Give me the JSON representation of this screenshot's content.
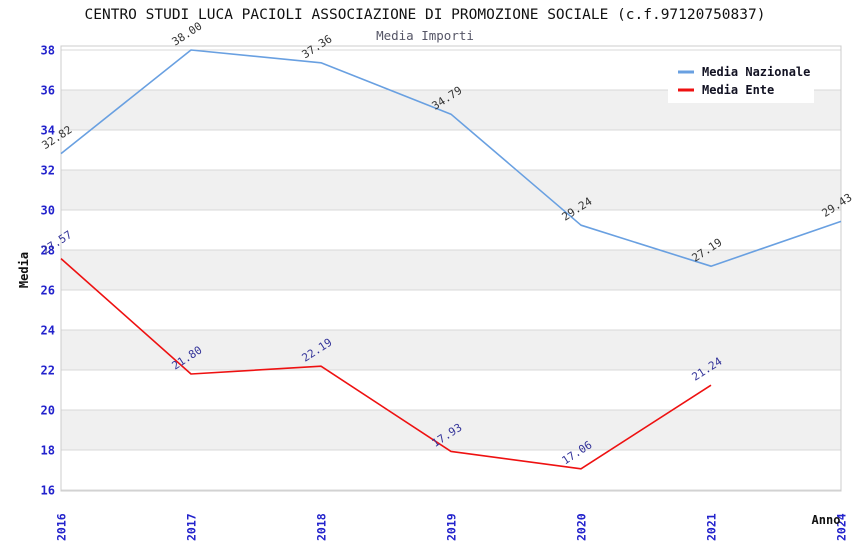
{
  "header": {
    "title": "CENTRO STUDI LUCA PACIOLI ASSOCIAZIONE DI PROMOZIONE SOCIALE (c.f.97120750837)",
    "subtitle": "Media Importi"
  },
  "chart_data": {
    "type": "line",
    "title": "CENTRO STUDI LUCA PACIOLI ASSOCIAZIONE DI PROMOZIONE SOCIALE (c.f.97120750837)",
    "subtitle": "Media Importi",
    "xlabel": "Anno",
    "ylabel": "Media",
    "categories": [
      "2016",
      "2017",
      "2018",
      "2019",
      "2020",
      "2021",
      "2024"
    ],
    "series": [
      {
        "name": "Media Nazionale",
        "color": "#69a0e1",
        "label_color": "#333333",
        "values": [
          32.82,
          38.0,
          37.36,
          34.79,
          29.24,
          27.19,
          29.43
        ]
      },
      {
        "name": "Media Ente",
        "color": "#ee1111",
        "label_color": "#333399",
        "values": [
          27.57,
          21.8,
          22.19,
          17.93,
          17.06,
          21.24,
          null
        ]
      }
    ],
    "point_labels": {
      "Media Nazionale": [
        "32.82",
        "38.00",
        "37.36",
        "34.79",
        "29.24",
        "27.19",
        "29.43"
      ],
      "Media Ente": [
        "27.57",
        "21.80",
        "22.19",
        "17.93",
        "17.06",
        "21.24"
      ]
    },
    "ylim": [
      16,
      38
    ],
    "ytick_step": 2,
    "yticks": [
      16,
      18,
      20,
      22,
      24,
      26,
      28,
      30,
      32,
      34,
      36,
      38
    ],
    "grid": "horizontal-bands",
    "legend_position": "top-right",
    "legend": [
      "Media Nazionale",
      "Media Ente"
    ],
    "colors": {
      "tick_label": "#2222cc",
      "band_fill": "#f0f0f0",
      "grid_line": "#d9d9d9",
      "frame": "#cccccc",
      "title": "#111111",
      "subtitle": "#555566",
      "legend_text": "#111122"
    }
  }
}
